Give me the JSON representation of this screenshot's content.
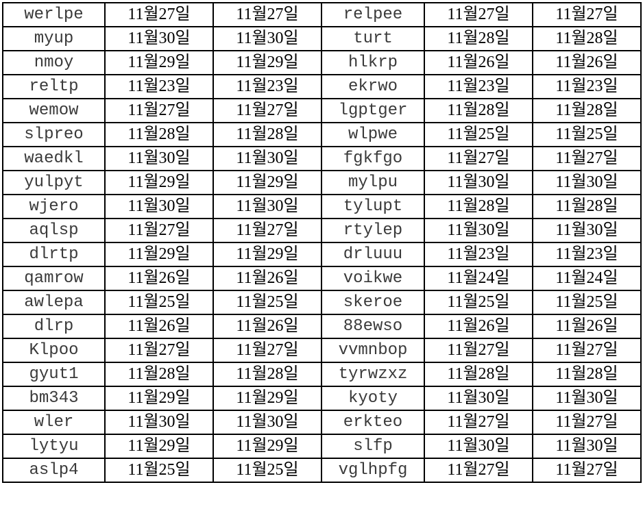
{
  "sheet": {
    "rows": [
      [
        "werlpe",
        "11월27일",
        "11월27일",
        "relpee",
        "11월27일",
        "11월27일"
      ],
      [
        "myup",
        "11월30일",
        "11월30일",
        "turt",
        "11월28일",
        "11월28일"
      ],
      [
        "nmoy",
        "11월29일",
        "11월29일",
        "hlkrp",
        "11월26일",
        "11월26일"
      ],
      [
        "reltp",
        "11월23일",
        "11월23일",
        "ekrwo",
        "11월23일",
        "11월23일"
      ],
      [
        "wemow",
        "11월27일",
        "11월27일",
        "lgptger",
        "11월28일",
        "11월28일"
      ],
      [
        "slpreo",
        "11월28일",
        "11월28일",
        "wlpwe",
        "11월25일",
        "11월25일"
      ],
      [
        "waedkl",
        "11월30일",
        "11월30일",
        "fgkfgo",
        "11월27일",
        "11월27일"
      ],
      [
        "yulpyt",
        "11월29일",
        "11월29일",
        "mylpu",
        "11월30일",
        "11월30일"
      ],
      [
        "wjero",
        "11월30일",
        "11월30일",
        "tylupt",
        "11월28일",
        "11월28일"
      ],
      [
        "aqlsp",
        "11월27일",
        "11월27일",
        "rtylep",
        "11월30일",
        "11월30일"
      ],
      [
        "dlrtp",
        "11월29일",
        "11월29일",
        "drluuu",
        "11월23일",
        "11월23일"
      ],
      [
        "qamrow",
        "11월26일",
        "11월26일",
        "voikwe",
        "11월24일",
        "11월24일"
      ],
      [
        "awlepa",
        "11월25일",
        "11월25일",
        "skeroe",
        "11월25일",
        "11월25일"
      ],
      [
        "dlrp",
        "11월26일",
        "11월26일",
        "88ewso",
        "11월26일",
        "11월26일"
      ],
      [
        "Klpoo",
        "11월27일",
        "11월27일",
        "vvmnbop",
        "11월27일",
        "11월27일"
      ],
      [
        "gyut1",
        "11월28일",
        "11월28일",
        "tyrwzxz",
        "11월28일",
        "11월28일"
      ],
      [
        "bm343",
        "11월29일",
        "11월29일",
        "kyoty",
        "11월30일",
        "11월30일"
      ],
      [
        "wler",
        "11월30일",
        "11월30일",
        "erkteo",
        "11월27일",
        "11월27일"
      ],
      [
        "lytyu",
        "11월29일",
        "11월29일",
        "slfp",
        "11월30일",
        "11월30일"
      ],
      [
        "aslp4",
        "11월25일",
        "11월25일",
        "vglhpfg",
        "11월27일",
        "11월27일"
      ]
    ]
  }
}
